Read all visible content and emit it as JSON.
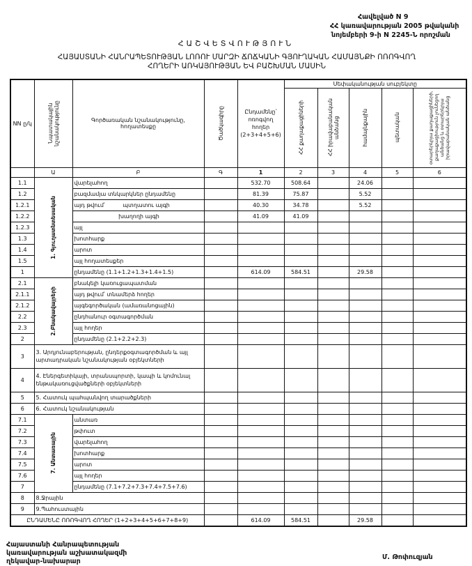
{
  "annex": [
    "Հավելված N 9",
    "ՀՀ կառավարության 2005 թվականի",
    "նոյեմբերի 9-ի N 2245-Ն որոշման"
  ],
  "title": "ՀԱՇՎԵՏՎՈՒԹՅՈՒՆ",
  "subtitle": [
    "ՀԱՅԱՍՏԱՆԻ ՀԱՆՐԱՊԵՏՈՒԹՅԱՆ ԼՈՌՈՒ ՄԱՐԶԻ ՃՈՃԿԱՆԻ ԳՅՈՒՂԱԿԱՆ ՀԱՄԱՅՆՔԻ ՈՌՈԳՎՈՂ",
    "ՀՈՂԵՐԻ ԱՌԿԱՅՈՒԹՅԱՆ ԵՎ ԲԱՇԽՄԱՆ ՄԱՍԻՆ"
  ],
  "header": {
    "no": "NN ը/կ",
    "purpose": "Նպատակային նշանակությունը",
    "function": "Գործառական նշանակությունը, հողատեսքը",
    "code": "Ծածկագիրը",
    "total": "Ընդամենը՝ ոռոգվող հողեր (2+3+4+5+6)",
    "ownership": "Սեփականության սուբյեկտը",
    "owners": [
      "ՀՀ քաղաքացիների",
      "ՀՀ իրավաբանական անձանց",
      "համայնքային",
      "պետական",
      "օտարերկրյա քաղաքացիների, քաղաքացիություն չունեցող անձանց և օտարերկրյա իրավաբանական անձանց"
    ],
    "letters": [
      "",
      "Ա",
      "Բ",
      "Գ",
      "1",
      "2",
      "3",
      "4",
      "5",
      "6"
    ]
  },
  "sections": [
    {
      "type": "group",
      "label": "1. Գյուղատնտեսական",
      "rows": [
        {
          "no": "1.1",
          "label": "վարելահող",
          "values": [
            "",
            "532.70",
            "508.64",
            "",
            "24.06",
            "",
            ""
          ]
        },
        {
          "no": "1.2",
          "label": "բազմամյա տնկարկներ ընդամենը",
          "values": [
            "",
            "81.39",
            "75.87",
            "",
            "5.52",
            "",
            ""
          ]
        },
        {
          "no": "1.2.1",
          "label": "այդ թվում՝          պտղատու այգի",
          "values": [
            "",
            "40.30",
            "34.78",
            "",
            "5.52",
            "",
            ""
          ]
        },
        {
          "no": "1.2.2",
          "label": "                         խաղողի այգի",
          "values": [
            "",
            "41.09",
            "41.09",
            "",
            "",
            "",
            ""
          ]
        },
        {
          "no": "1.2.3",
          "label": "այլ",
          "values": [
            "",
            "",
            "",
            "",
            "",
            "",
            ""
          ]
        },
        {
          "no": "1.3",
          "label": "խոտհարք",
          "values": [
            "",
            "",
            "",
            "",
            "",
            "",
            ""
          ]
        },
        {
          "no": "1.4",
          "label": "արոտ",
          "values": [
            "",
            "",
            "",
            "",
            "",
            "",
            ""
          ]
        },
        {
          "no": "1.5",
          "label": "այլ հողատեսքեր",
          "values": [
            "",
            "",
            "",
            "",
            "",
            "",
            ""
          ]
        },
        {
          "no": "1",
          "label": "ընդամենը (1.1+1.2+1.3+1.4+1.5)",
          "values": [
            "",
            "614.09",
            "584.51",
            "",
            "29.58",
            "",
            ""
          ]
        }
      ]
    },
    {
      "type": "group",
      "label": "2.Բնակավայրերի",
      "rows": [
        {
          "no": "2.1",
          "label": "բնակելի կառուցապատման",
          "values": [
            "",
            "",
            "",
            "",
            "",
            "",
            ""
          ]
        },
        {
          "no": "2.1.1",
          "label": "այդ թվում՝ տնամերձ հողեր",
          "values": [
            "",
            "",
            "",
            "",
            "",
            "",
            ""
          ]
        },
        {
          "no": "2.1.2",
          "label": "այգեգործական (ամառանոցային)",
          "values": [
            "",
            "",
            "",
            "",
            "",
            "",
            ""
          ]
        },
        {
          "no": "2.2",
          "label": "ընդհանուր օգտագործման",
          "values": [
            "",
            "",
            "",
            "",
            "",
            "",
            ""
          ]
        },
        {
          "no": "2.3",
          "label": "այլ հողեր",
          "values": [
            "",
            "",
            "",
            "",
            "",
            "",
            ""
          ]
        },
        {
          "no": "2",
          "label": "ընդամենը (2.1+2.2+2.3)",
          "values": [
            "",
            "",
            "",
            "",
            "",
            "",
            ""
          ]
        }
      ]
    },
    {
      "type": "full",
      "tall": true,
      "no": "3",
      "label": "3. Արդյունաբերության, ընդերքօգտագործման և այլ արտադրական նշանակության օբյեկտների",
      "values": [
        "",
        "",
        "",
        "",
        "",
        "",
        ""
      ]
    },
    {
      "type": "full",
      "tall": true,
      "no": "4",
      "label": "4. Էներգետիկայի, տրանսպորտի, կապի և կոմունալ ենթակառուցվածքների օբյեկտների",
      "values": [
        "",
        "",
        "",
        "",
        "",
        "",
        ""
      ]
    },
    {
      "type": "full",
      "no": "5",
      "label": "5. Հատուկ պահպանվող տարածքների",
      "values": [
        "",
        "",
        "",
        "",
        "",
        "",
        ""
      ]
    },
    {
      "type": "full",
      "no": "6",
      "label": "6. Հատուկ նշանակության",
      "values": [
        "",
        "",
        "",
        "",
        "",
        "",
        ""
      ]
    },
    {
      "type": "group",
      "label": "7. Անտառային",
      "rows": [
        {
          "no": "7.1",
          "label": "անտառ",
          "values": [
            "",
            "",
            "",
            "",
            "",
            "",
            ""
          ]
        },
        {
          "no": "7.2",
          "label": "թփուտ",
          "values": [
            "",
            "",
            "",
            "",
            "",
            "",
            ""
          ]
        },
        {
          "no": "7.3",
          "label": "վարելահող",
          "values": [
            "",
            "",
            "",
            "",
            "",
            "",
            ""
          ]
        },
        {
          "no": "7.4",
          "label": "խոտհարք",
          "values": [
            "",
            "",
            "",
            "",
            "",
            "",
            ""
          ]
        },
        {
          "no": "7.5",
          "label": "արոտ",
          "values": [
            "",
            "",
            "",
            "",
            "",
            "",
            ""
          ]
        },
        {
          "no": "7.6",
          "label": "այլ հողեր",
          "values": [
            "",
            "",
            "",
            "",
            "",
            "",
            ""
          ]
        },
        {
          "no": "7",
          "label": "ընդամենը (7.1+7.2+7.3+7.4+7.5+7.6)",
          "values": [
            "",
            "",
            "",
            "",
            "",
            "",
            ""
          ]
        }
      ]
    },
    {
      "type": "full",
      "no": "8",
      "label": "8.Ջրային",
      "values": [
        "",
        "",
        "",
        "",
        "",
        "",
        ""
      ]
    },
    {
      "type": "full",
      "no": "9",
      "label": "9.Պահուստային",
      "values": [
        "",
        "",
        "",
        "",
        "",
        "",
        ""
      ]
    },
    {
      "type": "total",
      "label": "ԸՆԴԱՄԵՆԸ ՈՌՈԳՎՈՂ ՀՈՂԵՐ (1+2+3+4+5+6+7+8+9)",
      "values": [
        "",
        "614.09",
        "584.51",
        "",
        "29.58",
        "",
        ""
      ]
    }
  ],
  "footer": {
    "position": [
      "Հայաստանի Հանրապետության",
      "կառավարության աշխատակազմի",
      "ղեկավար-նախարար"
    ],
    "signatory": "Մ. Թոփուզյան"
  }
}
